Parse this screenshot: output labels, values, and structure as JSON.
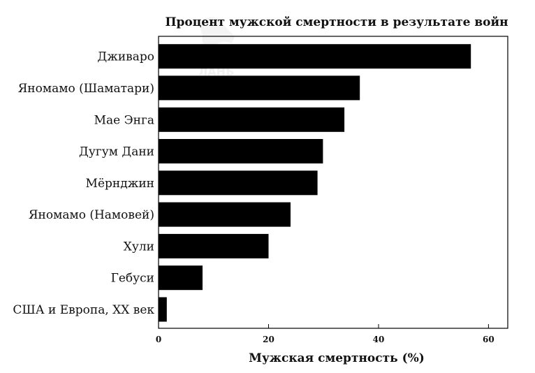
{
  "chart_data": {
    "type": "bar",
    "orientation": "horizontal",
    "title": "Процент мужской смертности в результате войн",
    "xlabel": "Мужская смертность (%)",
    "ylabel": "",
    "categories": [
      "Дживаро",
      "Яномамо (Шаматари)",
      "Мае Энга",
      "Дугум Дани",
      "Мёрнджин",
      "Яномамо (Намовей)",
      "Хули",
      "Гебуси",
      "США и Европа, XX век"
    ],
    "values": [
      56.8,
      36.6,
      33.8,
      29.9,
      28.9,
      24.0,
      20.0,
      8.0,
      1.5
    ],
    "xlim": [
      0,
      63.5
    ],
    "xticks": [
      0,
      20,
      40,
      60
    ],
    "bar_color": "#000000",
    "grid": false,
    "legend": "none"
  },
  "watermark": {
    "text": "ЛАНЬ"
  }
}
